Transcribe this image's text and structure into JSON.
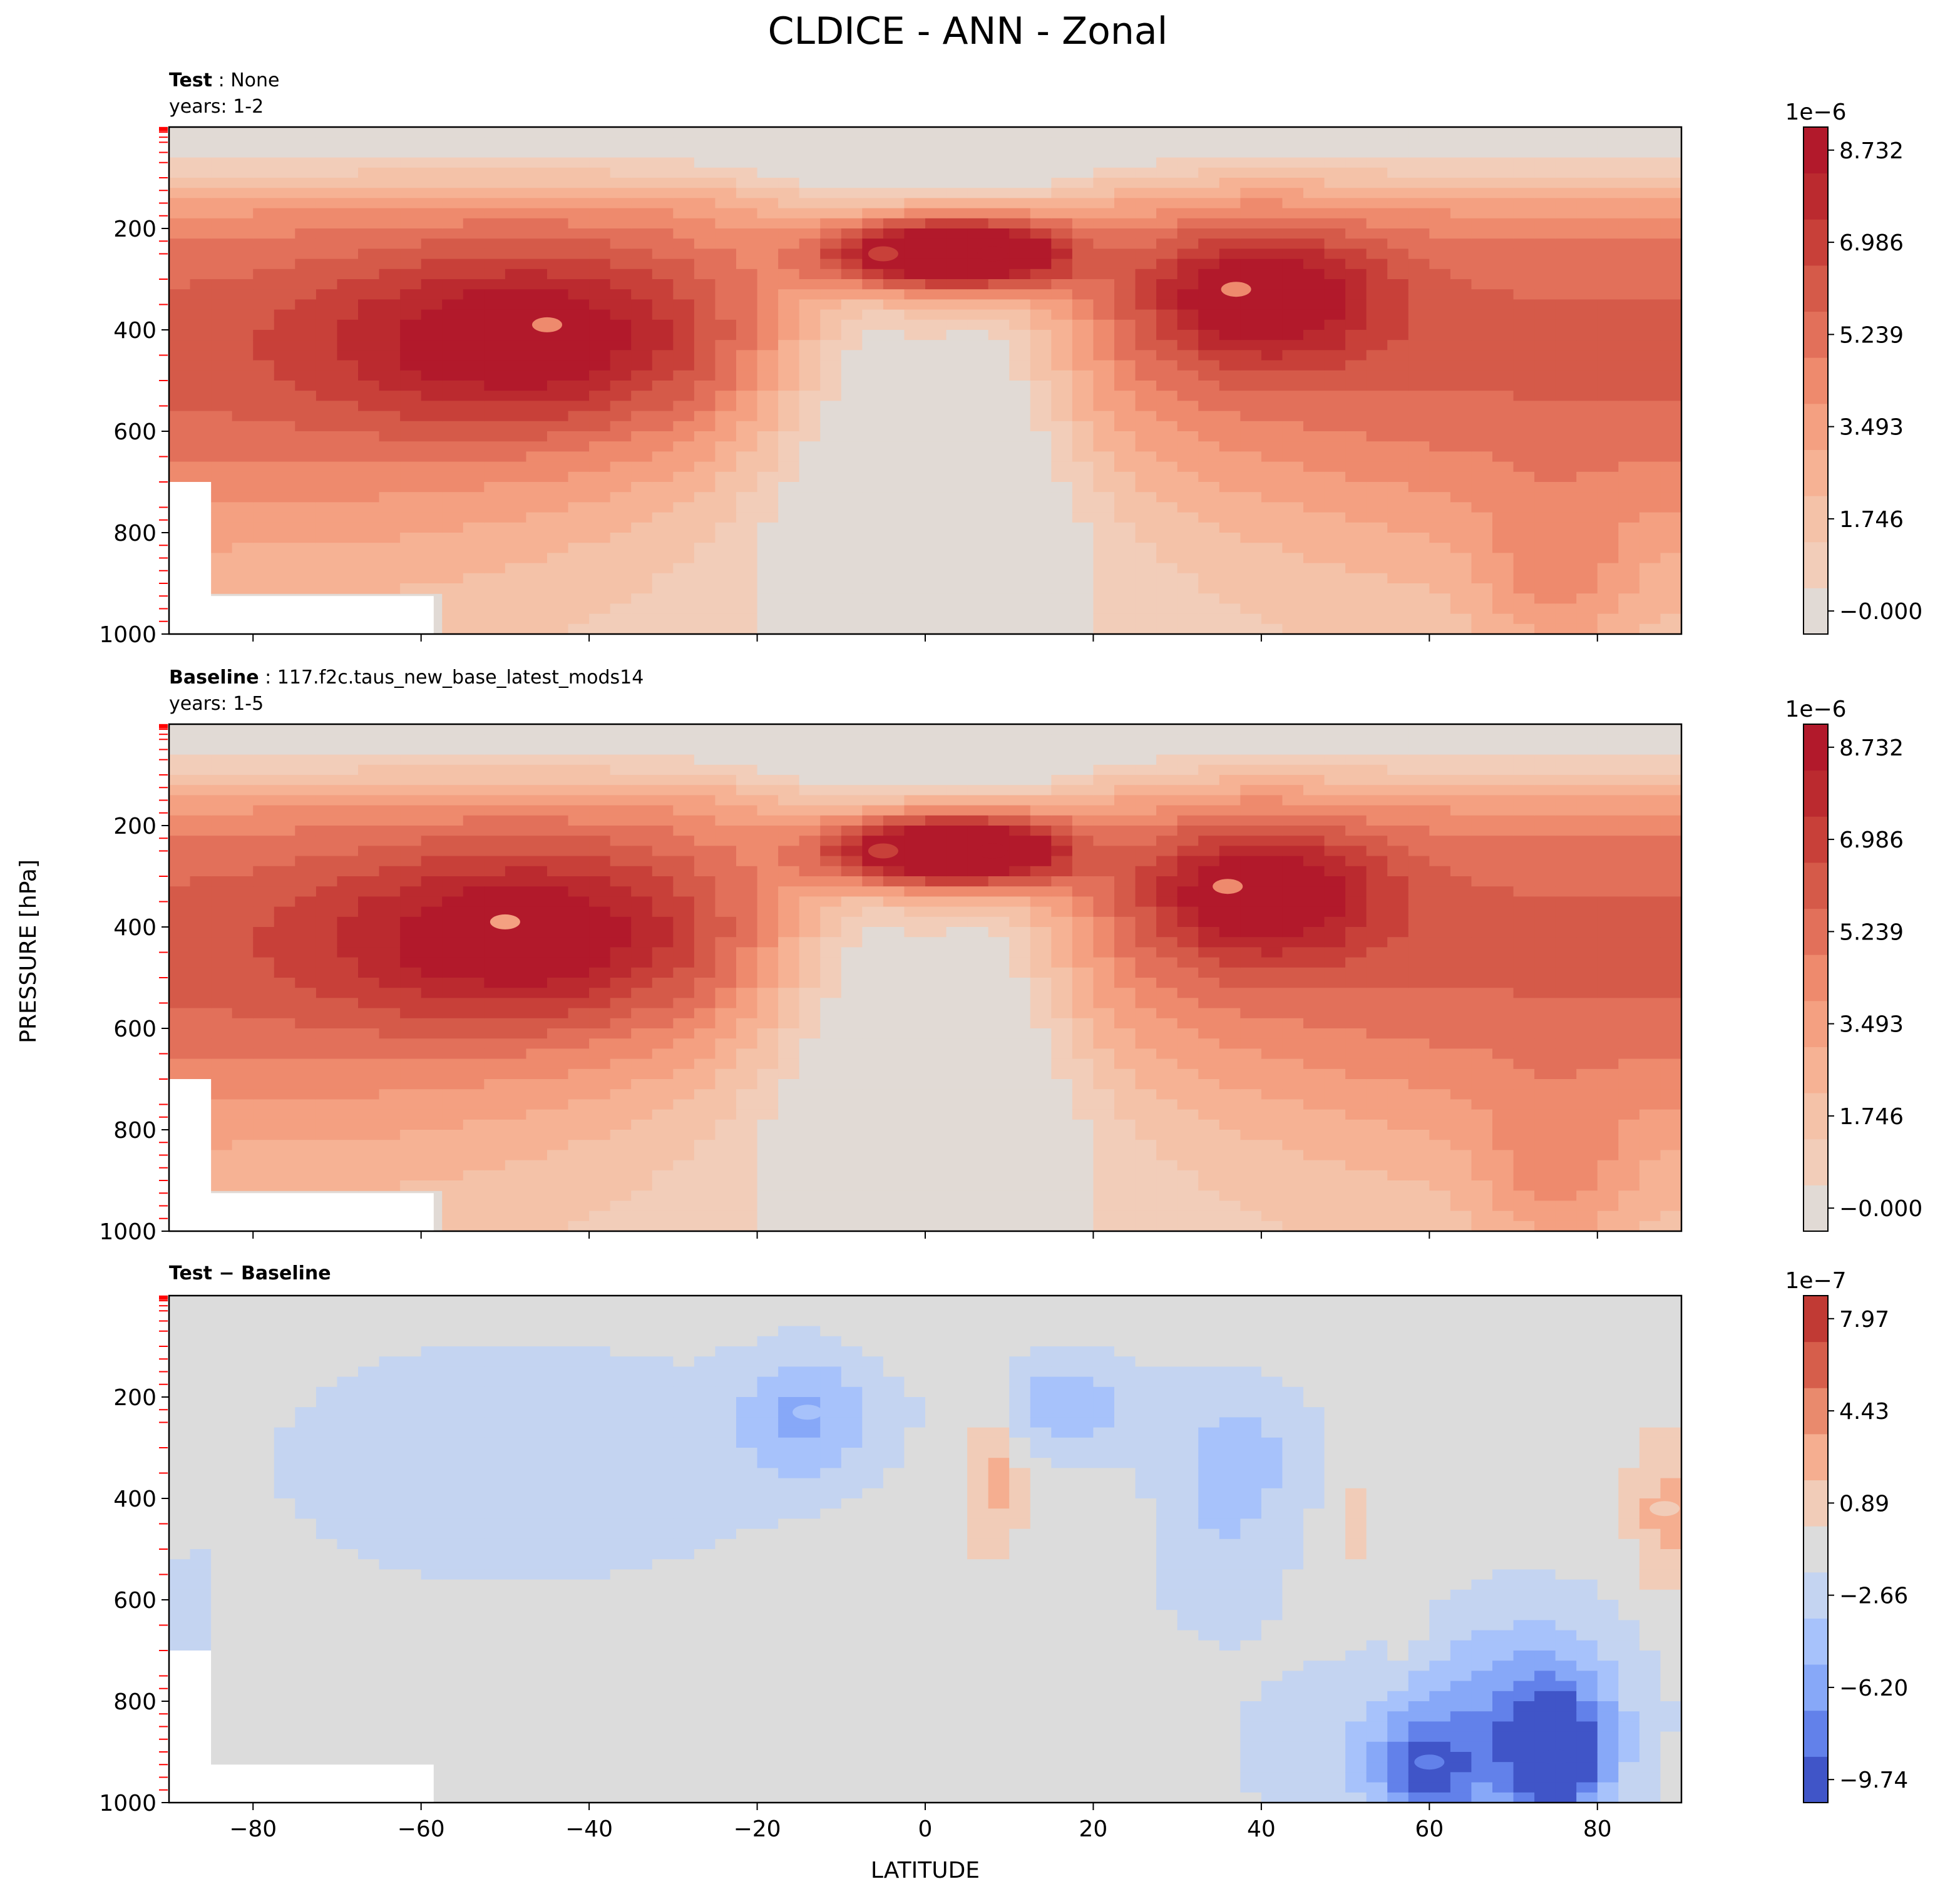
{
  "title": "CLDICE - ANN - Zonal",
  "ylabel": "PRESSURE [hPa]",
  "xlabel": "LATITUDE",
  "chart_data": [
    {
      "type": "heatmap",
      "panel": "test",
      "label_bold": "Test",
      "label_sep": " : ",
      "label_text": "None",
      "subtitle": "years: 1-2",
      "x": [
        -90,
        90
      ],
      "y": [
        0,
        1000
      ],
      "xticks": [
        -80,
        -60,
        -40,
        -20,
        0,
        20,
        40,
        60,
        80
      ],
      "yticks": [
        200,
        400,
        600,
        800,
        1000
      ],
      "y_inverted": true,
      "colorbar": {
        "scale_label": "1e−6",
        "ticks": [
          "8.732",
          "6.986",
          "5.239",
          "3.493",
          "1.746",
          "−0.000"
        ],
        "levels": 11,
        "colors": [
          "#e1dad5",
          "#f2cdb9",
          "#f4c2a8",
          "#f6b294",
          "#f4a081",
          "#ee8a6d",
          "#e2705a",
          "#d55a49",
          "#c84039",
          "#bb2a2f",
          "#b2192b"
        ]
      },
      "features": [
        {
          "lat": 8,
          "p": 250,
          "value": 9.4
        },
        {
          "lat": -5,
          "p": 250,
          "value": 7.2
        },
        {
          "lat": 37,
          "p": 320,
          "value": 4.7
        },
        {
          "lat": -45,
          "p": 390,
          "value": 4.4
        }
      ]
    },
    {
      "type": "heatmap",
      "panel": "baseline",
      "label_bold": "Baseline",
      "label_sep": " : ",
      "label_text": "117.f2c.taus_new_base_latest_mods14",
      "subtitle": "years: 1-5",
      "x": [
        -90,
        90
      ],
      "y": [
        0,
        1000
      ],
      "xticks": [
        -80,
        -60,
        -40,
        -20,
        0,
        20,
        40,
        60,
        80
      ],
      "yticks": [
        200,
        400,
        600,
        800,
        1000
      ],
      "y_inverted": true,
      "colorbar": {
        "scale_label": "1e−6",
        "ticks": [
          "8.732",
          "6.986",
          "5.239",
          "3.493",
          "1.746",
          "−0.000"
        ],
        "levels": 11,
        "colors": [
          "#e1dad5",
          "#f2cdb9",
          "#f4c2a8",
          "#f6b294",
          "#f4a081",
          "#ee8a6d",
          "#e2705a",
          "#d55a49",
          "#c84039",
          "#bb2a2f",
          "#b2192b"
        ]
      },
      "features": [
        {
          "lat": 8,
          "p": 250,
          "value": 9.3
        },
        {
          "lat": -5,
          "p": 250,
          "value": 7.2
        },
        {
          "lat": 36,
          "p": 320,
          "value": 4.8
        },
        {
          "lat": -50,
          "p": 390,
          "value": 4.3
        }
      ]
    },
    {
      "type": "heatmap",
      "panel": "diff",
      "label_bold": "Test − Baseline",
      "x": [
        -90,
        90
      ],
      "y": [
        0,
        1000
      ],
      "xticks": [
        -80,
        -60,
        -40,
        -20,
        0,
        20,
        40,
        60,
        80
      ],
      "yticks": [
        200,
        400,
        600,
        800,
        1000
      ],
      "y_inverted": true,
      "colorbar": {
        "scale_label": "1e−7",
        "ticks": [
          "7.97",
          "4.43",
          "0.89",
          "−2.66",
          "−6.20",
          "−9.74"
        ],
        "levels": 11,
        "colors": [
          "#4055c8",
          "#6281ea",
          "#87a8f8",
          "#a7c2fb",
          "#c4d4f1",
          "#dcdcdc",
          "#f1ccb8",
          "#f5ae90",
          "#e98a6d",
          "#d65e4b",
          "#c13a34"
        ]
      },
      "features": [
        {
          "lat": 75,
          "p": 910,
          "value": -9.7
        },
        {
          "lat": 60,
          "p": 920,
          "value": -6.2
        },
        {
          "lat": -14,
          "p": 230,
          "value": -4.4
        },
        {
          "lat": 16,
          "p": 220,
          "value": -3.5
        },
        {
          "lat": 8,
          "p": 300,
          "value": 2.6
        },
        {
          "lat": 88,
          "p": 420,
          "value": 2.6
        }
      ]
    }
  ]
}
